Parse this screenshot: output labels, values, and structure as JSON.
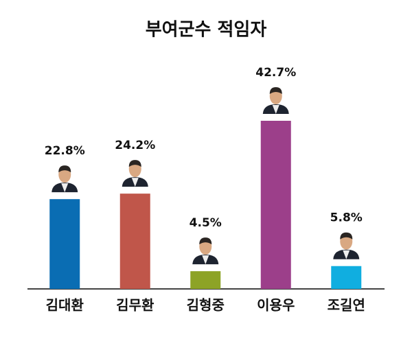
{
  "chart_data": {
    "type": "bar",
    "title": "부여군수 적임자",
    "categories": [
      "김대환",
      "김무환",
      "김형중",
      "이용우",
      "조길연"
    ],
    "values": [
      22.8,
      24.2,
      4.5,
      42.7,
      5.8
    ],
    "value_labels": [
      "22.8%",
      "24.2%",
      "4.5%",
      "42.7%",
      "5.8%"
    ],
    "colors": [
      "#0a6db3",
      "#c0564a",
      "#8da326",
      "#9c3f8a",
      "#10aee0"
    ]
  }
}
